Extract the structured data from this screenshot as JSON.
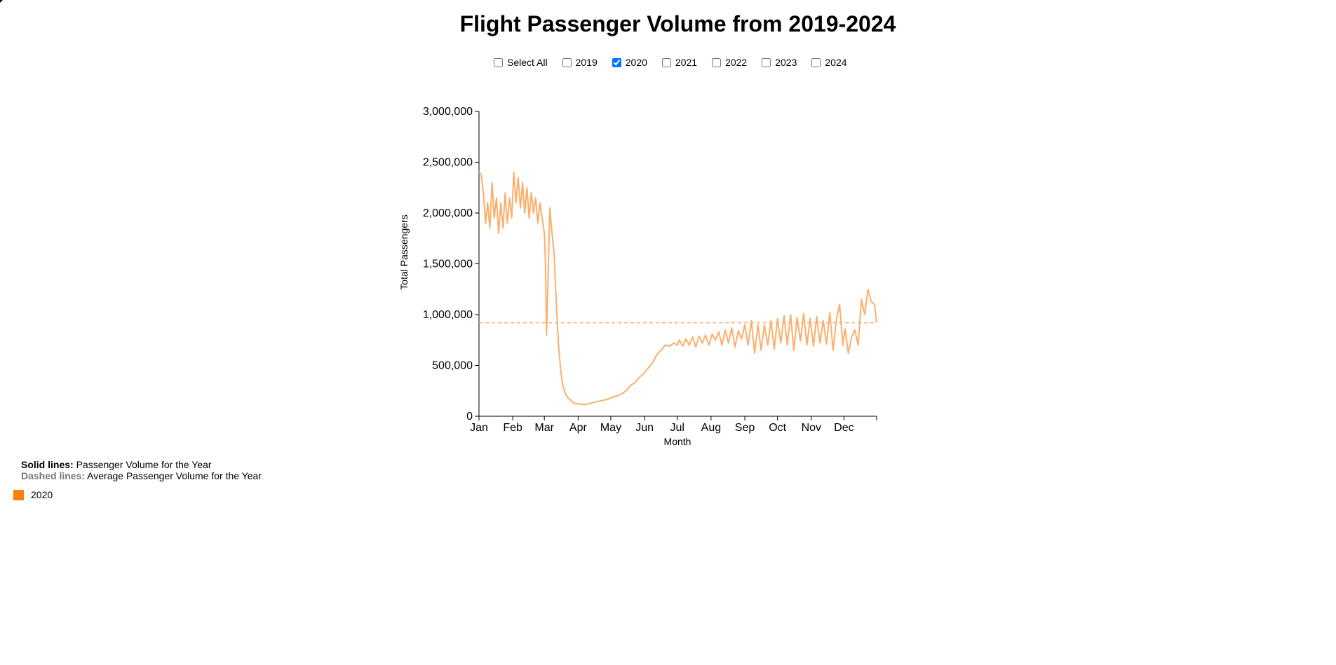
{
  "page": {
    "title": "Flight Passenger Volume from 2019-2024"
  },
  "filters": [
    {
      "label": "Select All",
      "checked": false
    },
    {
      "label": "2019",
      "checked": false
    },
    {
      "label": "2020",
      "checked": true
    },
    {
      "label": "2021",
      "checked": false
    },
    {
      "label": "2022",
      "checked": false
    },
    {
      "label": "2023",
      "checked": false
    },
    {
      "label": "2024",
      "checked": false
    }
  ],
  "notes": {
    "solid_label": "Solid lines:",
    "solid_text": "Passenger Volume for the Year",
    "dashed_label": "Dashed lines:",
    "dashed_text": "Average Passenger Volume for the Year"
  },
  "legend": [
    {
      "label": "2020",
      "color": "#ff7f0e"
    }
  ],
  "chart_data": {
    "type": "line",
    "xlabel": "Month",
    "ylabel": "Total Passengers",
    "ylim": [
      0,
      3000000
    ],
    "y_ticks": [
      "0",
      "500,000",
      "1,000,000",
      "1,500,000",
      "2,000,000",
      "2,500,000",
      "3,000,000"
    ],
    "y_tick_values": [
      0,
      500000,
      1000000,
      1500000,
      2000000,
      2500000,
      3000000
    ],
    "x_ticks": [
      "Jan",
      "Feb",
      "Mar",
      "Apr",
      "May",
      "Jun",
      "Jul",
      "Aug",
      "Sep",
      "Oct",
      "Nov",
      "Dec"
    ],
    "x_domain": [
      "2020-01-01",
      "2020-12-31"
    ],
    "line_color": "#fdae6b",
    "series": [
      {
        "name": "2020",
        "average": 920000,
        "x": [
          "2020-01-01",
          "2020-01-03",
          "2020-01-05",
          "2020-01-07",
          "2020-01-09",
          "2020-01-11",
          "2020-01-13",
          "2020-01-15",
          "2020-01-17",
          "2020-01-19",
          "2020-01-21",
          "2020-01-23",
          "2020-01-25",
          "2020-01-27",
          "2020-01-29",
          "2020-01-31",
          "2020-02-02",
          "2020-02-04",
          "2020-02-06",
          "2020-02-08",
          "2020-02-10",
          "2020-02-12",
          "2020-02-14",
          "2020-02-16",
          "2020-02-18",
          "2020-02-20",
          "2020-02-22",
          "2020-02-24",
          "2020-02-26",
          "2020-02-28",
          "2020-03-01",
          "2020-03-02",
          "2020-03-03",
          "2020-03-04",
          "2020-03-06",
          "2020-03-08",
          "2020-03-10",
          "2020-03-12",
          "2020-03-14",
          "2020-03-16",
          "2020-03-18",
          "2020-03-20",
          "2020-03-22",
          "2020-03-24",
          "2020-03-26",
          "2020-03-28",
          "2020-03-30",
          "2020-04-02",
          "2020-04-05",
          "2020-04-09",
          "2020-04-13",
          "2020-04-17",
          "2020-04-21",
          "2020-04-25",
          "2020-04-29",
          "2020-05-03",
          "2020-05-07",
          "2020-05-11",
          "2020-05-15",
          "2020-05-19",
          "2020-05-23",
          "2020-05-27",
          "2020-05-31",
          "2020-06-04",
          "2020-06-08",
          "2020-06-12",
          "2020-06-16",
          "2020-06-20",
          "2020-06-24",
          "2020-06-28",
          "2020-07-01",
          "2020-07-03",
          "2020-07-06",
          "2020-07-09",
          "2020-07-12",
          "2020-07-15",
          "2020-07-18",
          "2020-07-21",
          "2020-07-24",
          "2020-07-27",
          "2020-07-30",
          "2020-08-02",
          "2020-08-05",
          "2020-08-08",
          "2020-08-11",
          "2020-08-14",
          "2020-08-17",
          "2020-08-20",
          "2020-08-23",
          "2020-08-26",
          "2020-08-29",
          "2020-09-01",
          "2020-09-04",
          "2020-09-07",
          "2020-09-10",
          "2020-09-13",
          "2020-09-16",
          "2020-09-19",
          "2020-09-22",
          "2020-09-25",
          "2020-09-28",
          "2020-10-01",
          "2020-10-04",
          "2020-10-07",
          "2020-10-10",
          "2020-10-13",
          "2020-10-16",
          "2020-10-19",
          "2020-10-22",
          "2020-10-25",
          "2020-10-28",
          "2020-10-31",
          "2020-11-03",
          "2020-11-06",
          "2020-11-09",
          "2020-11-12",
          "2020-11-15",
          "2020-11-18",
          "2020-11-21",
          "2020-11-24",
          "2020-11-27",
          "2020-11-30",
          "2020-12-02",
          "2020-12-05",
          "2020-12-08",
          "2020-12-11",
          "2020-12-14",
          "2020-12-17",
          "2020-12-20",
          "2020-12-23",
          "2020-12-26",
          "2020-12-29",
          "2020-12-31"
        ],
        "values": [
          2400000,
          2380000,
          2200000,
          1900000,
          2100000,
          1850000,
          2300000,
          1950000,
          2150000,
          1800000,
          2100000,
          1850000,
          2200000,
          1900000,
          2150000,
          1950000,
          2400000,
          2100000,
          2350000,
          2050000,
          2300000,
          2000000,
          2250000,
          1950000,
          2200000,
          2000000,
          2150000,
          1900000,
          2100000,
          1950000,
          1800000,
          1500000,
          800000,
          1200000,
          2050000,
          1800000,
          1600000,
          1100000,
          700000,
          450000,
          300000,
          230000,
          190000,
          170000,
          150000,
          130000,
          125000,
          120000,
          115000,
          118000,
          130000,
          140000,
          150000,
          160000,
          170000,
          190000,
          200000,
          220000,
          250000,
          300000,
          330000,
          380000,
          420000,
          470000,
          520000,
          600000,
          650000,
          700000,
          690000,
          720000,
          700000,
          750000,
          690000,
          760000,
          700000,
          780000,
          680000,
          790000,
          720000,
          800000,
          700000,
          810000,
          750000,
          830000,
          700000,
          850000,
          720000,
          870000,
          680000,
          840000,
          760000,
          900000,
          700000,
          940000,
          620000,
          900000,
          650000,
          900000,
          700000,
          940000,
          660000,
          960000,
          720000,
          990000,
          700000,
          1000000,
          650000,
          970000,
          740000,
          1010000,
          700000,
          960000,
          690000,
          980000,
          720000,
          940000,
          710000,
          1020000,
          650000,
          950000,
          1100000,
          700000,
          860000,
          620000,
          780000,
          850000,
          700000,
          1150000,
          1000000,
          1250000,
          1130000,
          1100000,
          920000
        ]
      }
    ]
  }
}
